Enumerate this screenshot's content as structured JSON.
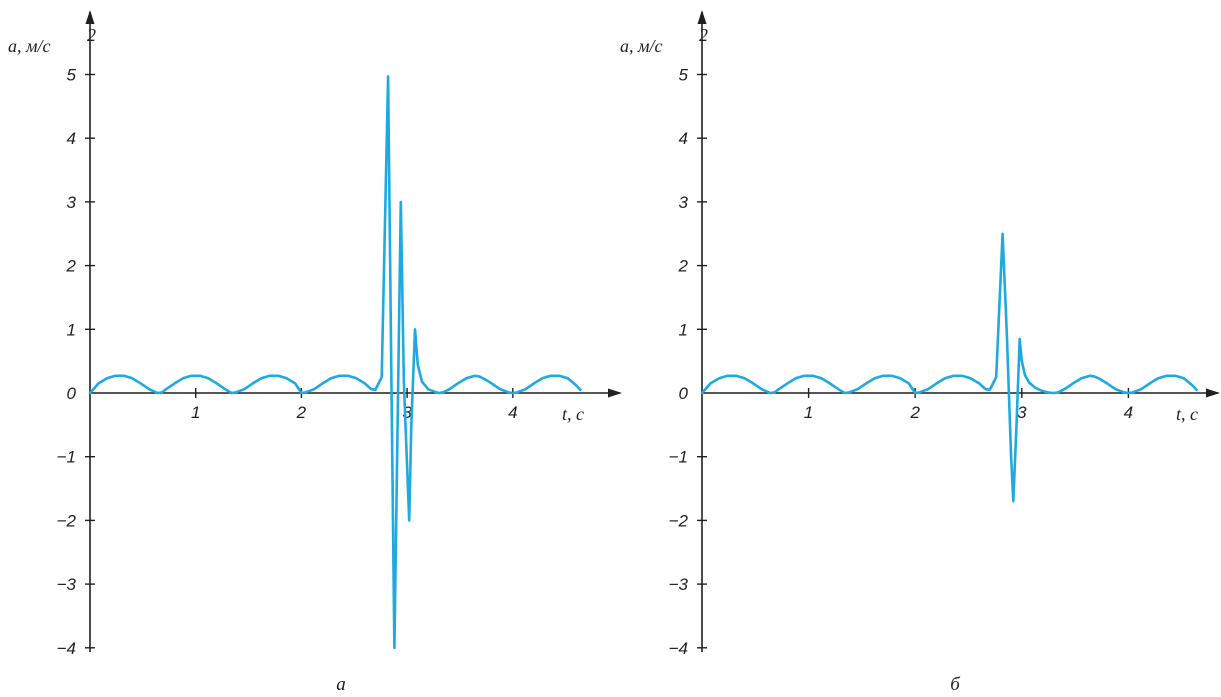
{
  "colors": {
    "curve": "#1fa9e1",
    "axis": "#231f20"
  },
  "chart_data": [
    {
      "type": "line",
      "caption": "а",
      "ylabel": "a, м/с",
      "ylabel_sup": "2",
      "xlabel": "t, с",
      "xlim": [
        0,
        5
      ],
      "ylim": [
        -4.4,
        5.5
      ],
      "xticks": [
        "1",
        "2",
        "3",
        "4"
      ],
      "yticks": [
        "5",
        "4",
        "3",
        "2",
        "1",
        "0",
        "−1",
        "−2",
        "−3",
        "−4"
      ],
      "series": [
        {
          "x": [
            0.0,
            0.08,
            0.16,
            0.24,
            0.32,
            0.4,
            0.48,
            0.56,
            0.64,
            0.68,
            0.72,
            0.8,
            0.88,
            0.96,
            1.04,
            1.12,
            1.2,
            1.28,
            1.34,
            1.38,
            1.46,
            1.54,
            1.62,
            1.7,
            1.78,
            1.86,
            1.94,
            2.0,
            2.04,
            2.12,
            2.2,
            2.28,
            2.36,
            2.44,
            2.52,
            2.6,
            2.66,
            2.7,
            2.76,
            2.82,
            2.85,
            2.88,
            2.94,
            2.97,
            3.02,
            3.04,
            3.075,
            3.1,
            3.14,
            3.2,
            3.26,
            3.3,
            3.34,
            3.4,
            3.48,
            3.56,
            3.64,
            3.68,
            3.72,
            3.8,
            3.88,
            3.96,
            4.0,
            4.04,
            4.12,
            4.2,
            4.28,
            4.36,
            4.44,
            4.52,
            4.6,
            4.64
          ],
          "y": [
            0.0,
            0.15,
            0.23,
            0.27,
            0.27,
            0.23,
            0.15,
            0.06,
            0.0,
            0.01,
            0.06,
            0.15,
            0.23,
            0.27,
            0.27,
            0.23,
            0.15,
            0.06,
            0.0,
            0.01,
            0.06,
            0.15,
            0.23,
            0.27,
            0.27,
            0.23,
            0.15,
            0.0,
            0.01,
            0.06,
            0.15,
            0.23,
            0.27,
            0.27,
            0.23,
            0.15,
            0.06,
            0.05,
            0.25,
            4.97,
            0.5,
            -4.0,
            3.0,
            0.15,
            -2.0,
            -0.5,
            1.0,
            0.45,
            0.18,
            0.06,
            0.02,
            0.0,
            0.01,
            0.06,
            0.15,
            0.23,
            0.27,
            0.26,
            0.23,
            0.15,
            0.06,
            0.01,
            0.0,
            0.01,
            0.06,
            0.15,
            0.23,
            0.27,
            0.27,
            0.23,
            0.12,
            0.05
          ]
        }
      ]
    },
    {
      "type": "line",
      "caption": "б",
      "ylabel": "a, м/с",
      "ylabel_sup": "2",
      "xlabel": "t, с",
      "xlim": [
        0,
        5
      ],
      "ylim": [
        -4.4,
        5.5
      ],
      "xticks": [
        "1",
        "2",
        "3",
        "4"
      ],
      "yticks": [
        "5",
        "4",
        "3",
        "2",
        "1",
        "0",
        "−1",
        "−2",
        "−3",
        "−4"
      ],
      "series": [
        {
          "x": [
            0.0,
            0.08,
            0.16,
            0.24,
            0.32,
            0.4,
            0.48,
            0.56,
            0.64,
            0.68,
            0.72,
            0.8,
            0.88,
            0.96,
            1.04,
            1.12,
            1.2,
            1.28,
            1.34,
            1.38,
            1.46,
            1.54,
            1.62,
            1.7,
            1.78,
            1.86,
            1.94,
            2.0,
            2.04,
            2.12,
            2.2,
            2.28,
            2.36,
            2.44,
            2.52,
            2.6,
            2.66,
            2.7,
            2.76,
            2.82,
            2.86,
            2.9,
            2.92,
            2.95,
            2.98,
            3.0,
            3.03,
            3.07,
            3.12,
            3.18,
            3.24,
            3.3,
            3.34,
            3.4,
            3.48,
            3.56,
            3.64,
            3.68,
            3.72,
            3.8,
            3.88,
            3.96,
            4.0,
            4.04,
            4.12,
            4.2,
            4.28,
            4.36,
            4.44,
            4.52,
            4.6,
            4.64
          ],
          "y": [
            0.0,
            0.15,
            0.23,
            0.27,
            0.27,
            0.23,
            0.15,
            0.06,
            0.0,
            0.01,
            0.06,
            0.15,
            0.23,
            0.27,
            0.27,
            0.23,
            0.15,
            0.06,
            0.0,
            0.01,
            0.06,
            0.15,
            0.23,
            0.27,
            0.27,
            0.23,
            0.15,
            0.0,
            0.01,
            0.06,
            0.15,
            0.23,
            0.27,
            0.27,
            0.23,
            0.15,
            0.06,
            0.05,
            0.25,
            2.5,
            0.9,
            -1.0,
            -1.7,
            -0.5,
            0.85,
            0.5,
            0.28,
            0.16,
            0.09,
            0.04,
            0.01,
            0.0,
            0.01,
            0.06,
            0.15,
            0.23,
            0.27,
            0.26,
            0.23,
            0.15,
            0.06,
            0.01,
            0.0,
            0.01,
            0.06,
            0.15,
            0.23,
            0.27,
            0.27,
            0.23,
            0.12,
            0.05
          ]
        }
      ]
    }
  ]
}
